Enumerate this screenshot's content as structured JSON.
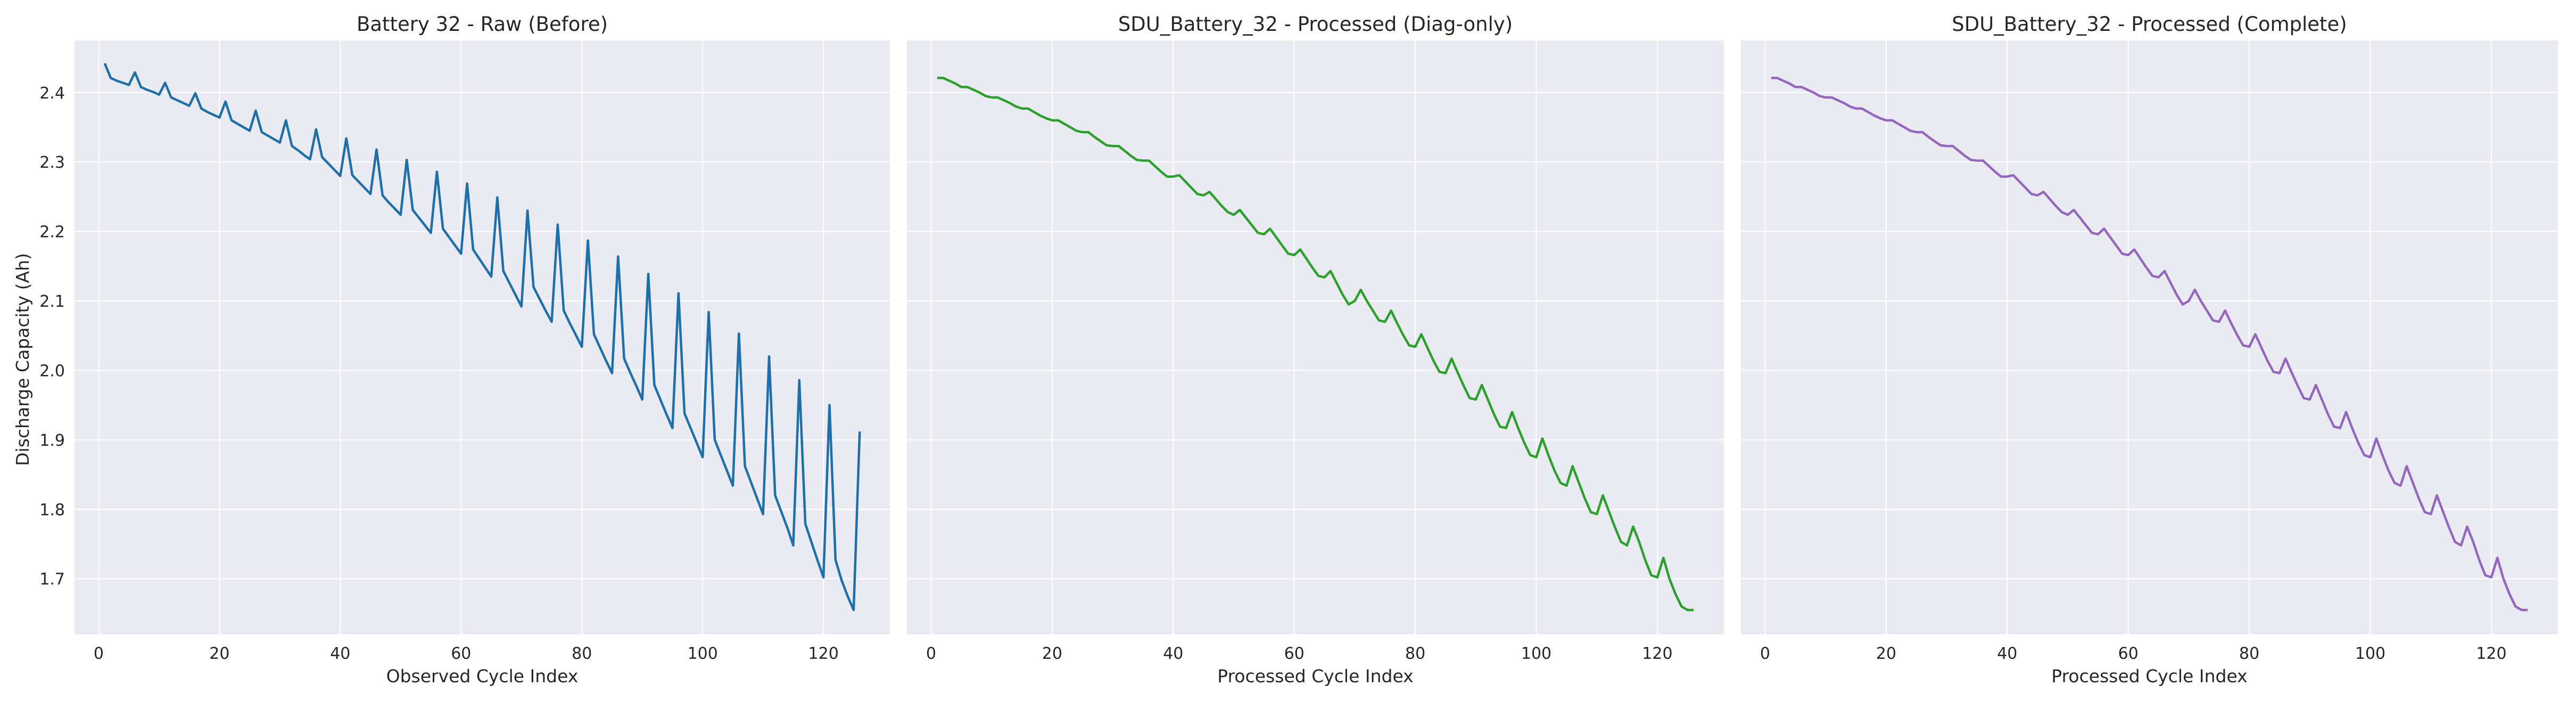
{
  "ylabel": "Discharge Capacity (Ah)",
  "colors": {
    "background": "#eaeaf2",
    "grid": "#ffffff",
    "tick_text": "#262626"
  },
  "chart_data": [
    {
      "type": "line",
      "title": "Battery 32 - Raw (Before)",
      "xlabel": "Observed Cycle Index",
      "ylabel": "Discharge Capacity (Ah)",
      "xlim": [
        -4,
        131
      ],
      "ylim": [
        1.62,
        2.475
      ],
      "xticks": [
        0,
        20,
        40,
        60,
        80,
        100,
        120
      ],
      "yticks": [
        1.7,
        1.8,
        1.9,
        2.0,
        2.1,
        2.2,
        2.3,
        2.4
      ],
      "grid": true,
      "color": "#1f6fa8",
      "series": [
        {
          "x": [
            1,
            2,
            3,
            4,
            5,
            6,
            7,
            8,
            9,
            10,
            11,
            12,
            13,
            14,
            15,
            16,
            17,
            18,
            19,
            20,
            21,
            22,
            23,
            24,
            25,
            26,
            27,
            28,
            29,
            30,
            31,
            32,
            33,
            34,
            35,
            36,
            37,
            38,
            39,
            40,
            41,
            42,
            43,
            44,
            45,
            46,
            47,
            48,
            49,
            50,
            51,
            52,
            53,
            54,
            55,
            56,
            57,
            58,
            59,
            60,
            61,
            62,
            63,
            64,
            65,
            66,
            67,
            68,
            69,
            70,
            71,
            72,
            73,
            74,
            75,
            76,
            77,
            78,
            79,
            80,
            81,
            82,
            83,
            84,
            85,
            86,
            87,
            88,
            89,
            90,
            91,
            92,
            93,
            94,
            95,
            96,
            97,
            98,
            99,
            100,
            101,
            102,
            103,
            104,
            105,
            106,
            107,
            108,
            109,
            110,
            111,
            112,
            113,
            114,
            115,
            116,
            117,
            118,
            119,
            120,
            121,
            122,
            123,
            124,
            125,
            126
          ],
          "y": [
            2.442,
            2.421,
            2.417,
            2.414,
            2.411,
            2.429,
            2.408,
            2.404,
            2.401,
            2.397,
            2.414,
            2.393,
            2.389,
            2.385,
            2.381,
            2.399,
            2.377,
            2.372,
            2.368,
            2.364,
            2.387,
            2.36,
            2.355,
            2.35,
            2.345,
            2.374,
            2.343,
            2.338,
            2.333,
            2.328,
            2.36,
            2.323,
            2.317,
            2.31,
            2.304,
            2.347,
            2.307,
            2.298,
            2.289,
            2.28,
            2.334,
            2.281,
            2.272,
            2.263,
            2.254,
            2.318,
            2.252,
            2.242,
            2.233,
            2.224,
            2.303,
            2.231,
            2.22,
            2.209,
            2.198,
            2.286,
            2.204,
            2.192,
            2.18,
            2.168,
            2.269,
            2.174,
            2.161,
            2.148,
            2.135,
            2.249,
            2.143,
            2.126,
            2.109,
            2.092,
            2.23,
            2.12,
            2.103,
            2.086,
            2.07,
            2.21,
            2.086,
            2.068,
            2.051,
            2.034,
            2.187,
            2.052,
            2.033,
            2.014,
            1.996,
            2.164,
            2.017,
            1.997,
            1.978,
            1.958,
            2.139,
            1.979,
            1.958,
            1.937,
            1.917,
            2.111,
            1.938,
            1.917,
            1.896,
            1.875,
            2.084,
            1.9,
            1.878,
            1.856,
            1.834,
            2.053,
            1.862,
            1.839,
            1.816,
            1.793,
            2.02,
            1.82,
            1.797,
            1.774,
            1.748,
            1.986,
            1.779,
            1.753,
            1.727,
            1.702,
            1.95,
            1.727,
            1.698,
            1.675,
            1.655,
            1.912
          ]
        }
      ]
    },
    {
      "type": "line",
      "title": "SDU_Battery_32 - Processed (Diag-only)",
      "xlabel": "Processed Cycle Index",
      "ylabel": "",
      "xlim": [
        -4,
        131
      ],
      "ylim": [
        1.62,
        2.475
      ],
      "xticks": [
        0,
        20,
        40,
        60,
        80,
        100,
        120
      ],
      "yticks": [
        1.7,
        1.8,
        1.9,
        2.0,
        2.1,
        2.2,
        2.3,
        2.4
      ],
      "grid": true,
      "color": "#2ca02c",
      "series": [
        {
          "x": [
            1,
            2,
            3,
            4,
            5,
            6,
            7,
            8,
            9,
            10,
            11,
            12,
            13,
            14,
            15,
            16,
            17,
            18,
            19,
            20,
            21,
            22,
            23,
            24,
            25,
            26,
            27,
            28,
            29,
            30,
            31,
            32,
            33,
            34,
            35,
            36,
            37,
            38,
            39,
            40,
            41,
            42,
            43,
            44,
            45,
            46,
            47,
            48,
            49,
            50,
            51,
            52,
            53,
            54,
            55,
            56,
            57,
            58,
            59,
            60,
            61,
            62,
            63,
            64,
            65,
            66,
            67,
            68,
            69,
            70,
            71,
            72,
            73,
            74,
            75,
            76,
            77,
            78,
            79,
            80,
            81,
            82,
            83,
            84,
            85,
            86,
            87,
            88,
            89,
            90,
            91,
            92,
            93,
            94,
            95,
            96,
            97,
            98,
            99,
            100,
            101,
            102,
            103,
            104,
            105,
            106,
            107,
            108,
            109,
            110,
            111,
            112,
            113,
            114,
            115,
            116,
            117,
            118,
            119,
            120,
            121,
            122,
            123,
            124,
            125,
            126
          ],
          "y": [
            2.421,
            2.421,
            2.417,
            2.413,
            2.408,
            2.408,
            2.404,
            2.4,
            2.395,
            2.393,
            2.393,
            2.389,
            2.385,
            2.38,
            2.377,
            2.377,
            2.372,
            2.367,
            2.363,
            2.36,
            2.36,
            2.355,
            2.35,
            2.345,
            2.343,
            2.343,
            2.336,
            2.33,
            2.324,
            2.323,
            2.323,
            2.316,
            2.309,
            2.303,
            2.302,
            2.302,
            2.294,
            2.286,
            2.279,
            2.279,
            2.281,
            2.272,
            2.263,
            2.254,
            2.252,
            2.257,
            2.247,
            2.237,
            2.228,
            2.224,
            2.231,
            2.22,
            2.209,
            2.198,
            2.196,
            2.204,
            2.192,
            2.18,
            2.168,
            2.166,
            2.174,
            2.161,
            2.148,
            2.136,
            2.134,
            2.143,
            2.126,
            2.109,
            2.095,
            2.1,
            2.116,
            2.1,
            2.086,
            2.072,
            2.07,
            2.086,
            2.068,
            2.051,
            2.036,
            2.034,
            2.052,
            2.033,
            2.014,
            1.998,
            1.996,
            2.017,
            1.997,
            1.978,
            1.96,
            1.958,
            1.979,
            1.958,
            1.937,
            1.919,
            1.917,
            1.94,
            1.917,
            1.896,
            1.878,
            1.875,
            1.902,
            1.878,
            1.856,
            1.838,
            1.834,
            1.862,
            1.839,
            1.816,
            1.796,
            1.793,
            1.82,
            1.797,
            1.774,
            1.753,
            1.748,
            1.775,
            1.753,
            1.727,
            1.705,
            1.702,
            1.73,
            1.7,
            1.678,
            1.66,
            1.655,
            1.655
          ]
        }
      ]
    },
    {
      "type": "line",
      "title": "SDU_Battery_32 - Processed (Complete)",
      "xlabel": "Processed Cycle Index",
      "ylabel": "",
      "xlim": [
        -4,
        131
      ],
      "ylim": [
        1.62,
        2.475
      ],
      "xticks": [
        0,
        20,
        40,
        60,
        80,
        100,
        120
      ],
      "yticks": [
        1.7,
        1.8,
        1.9,
        2.0,
        2.1,
        2.2,
        2.3,
        2.4
      ],
      "grid": true,
      "color": "#9467bd",
      "series": [
        {
          "x": [
            1,
            2,
            3,
            4,
            5,
            6,
            7,
            8,
            9,
            10,
            11,
            12,
            13,
            14,
            15,
            16,
            17,
            18,
            19,
            20,
            21,
            22,
            23,
            24,
            25,
            26,
            27,
            28,
            29,
            30,
            31,
            32,
            33,
            34,
            35,
            36,
            37,
            38,
            39,
            40,
            41,
            42,
            43,
            44,
            45,
            46,
            47,
            48,
            49,
            50,
            51,
            52,
            53,
            54,
            55,
            56,
            57,
            58,
            59,
            60,
            61,
            62,
            63,
            64,
            65,
            66,
            67,
            68,
            69,
            70,
            71,
            72,
            73,
            74,
            75,
            76,
            77,
            78,
            79,
            80,
            81,
            82,
            83,
            84,
            85,
            86,
            87,
            88,
            89,
            90,
            91,
            92,
            93,
            94,
            95,
            96,
            97,
            98,
            99,
            100,
            101,
            102,
            103,
            104,
            105,
            106,
            107,
            108,
            109,
            110,
            111,
            112,
            113,
            114,
            115,
            116,
            117,
            118,
            119,
            120,
            121,
            122,
            123,
            124,
            125,
            126
          ],
          "y": [
            2.421,
            2.421,
            2.417,
            2.413,
            2.408,
            2.408,
            2.404,
            2.4,
            2.395,
            2.393,
            2.393,
            2.389,
            2.385,
            2.38,
            2.377,
            2.377,
            2.372,
            2.367,
            2.363,
            2.36,
            2.36,
            2.355,
            2.35,
            2.345,
            2.343,
            2.343,
            2.336,
            2.33,
            2.324,
            2.323,
            2.323,
            2.316,
            2.309,
            2.303,
            2.302,
            2.302,
            2.294,
            2.286,
            2.279,
            2.279,
            2.281,
            2.272,
            2.263,
            2.254,
            2.252,
            2.257,
            2.247,
            2.237,
            2.228,
            2.224,
            2.231,
            2.22,
            2.209,
            2.198,
            2.196,
            2.204,
            2.192,
            2.18,
            2.168,
            2.166,
            2.174,
            2.161,
            2.148,
            2.136,
            2.134,
            2.143,
            2.126,
            2.109,
            2.095,
            2.1,
            2.116,
            2.1,
            2.086,
            2.072,
            2.07,
            2.086,
            2.068,
            2.051,
            2.036,
            2.034,
            2.052,
            2.033,
            2.014,
            1.998,
            1.996,
            2.017,
            1.997,
            1.978,
            1.96,
            1.958,
            1.979,
            1.958,
            1.937,
            1.919,
            1.917,
            1.94,
            1.917,
            1.896,
            1.878,
            1.875,
            1.902,
            1.878,
            1.856,
            1.838,
            1.834,
            1.862,
            1.839,
            1.816,
            1.796,
            1.793,
            1.82,
            1.797,
            1.774,
            1.753,
            1.748,
            1.775,
            1.753,
            1.727,
            1.705,
            1.702,
            1.73,
            1.7,
            1.678,
            1.66,
            1.655,
            1.655
          ]
        }
      ]
    }
  ]
}
